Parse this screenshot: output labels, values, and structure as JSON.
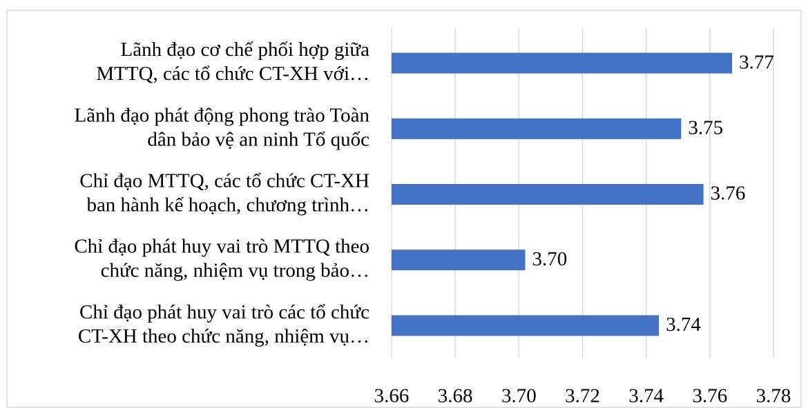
{
  "chart_data": {
    "type": "bar",
    "orientation": "horizontal",
    "categories": [
      "Lãnh đạo cơ chế phối hợp giữa\nMTTQ, các tổ chức CT-XH với…",
      "Lãnh đạo phát động phong trào Toàn\ndân bảo vệ an ninh Tổ quốc",
      "Chỉ đạo MTTQ, các tổ chức CT-XH\nban hành kế hoạch, chương trình…",
      "Chỉ đạo phát huy vai trò MTTQ theo\nchức năng, nhiệm vụ trong bảo…",
      "Chỉ đạo phát huy vai trò các tổ chức\nCT-XH theo chức năng, nhiệm vụ…"
    ],
    "values": [
      3.767,
      3.751,
      3.758,
      3.702,
      3.744
    ],
    "value_labels": [
      "3.77",
      "3.75",
      "3.76",
      "3.70",
      "3.74"
    ],
    "color": "#4472c4",
    "xlim": [
      3.66,
      3.78
    ],
    "xticks": [
      3.66,
      3.68,
      {
        "value": 3.7,
        "label": "3.70"
      },
      3.72,
      3.74,
      3.76,
      3.78
    ],
    "grid": true
  }
}
